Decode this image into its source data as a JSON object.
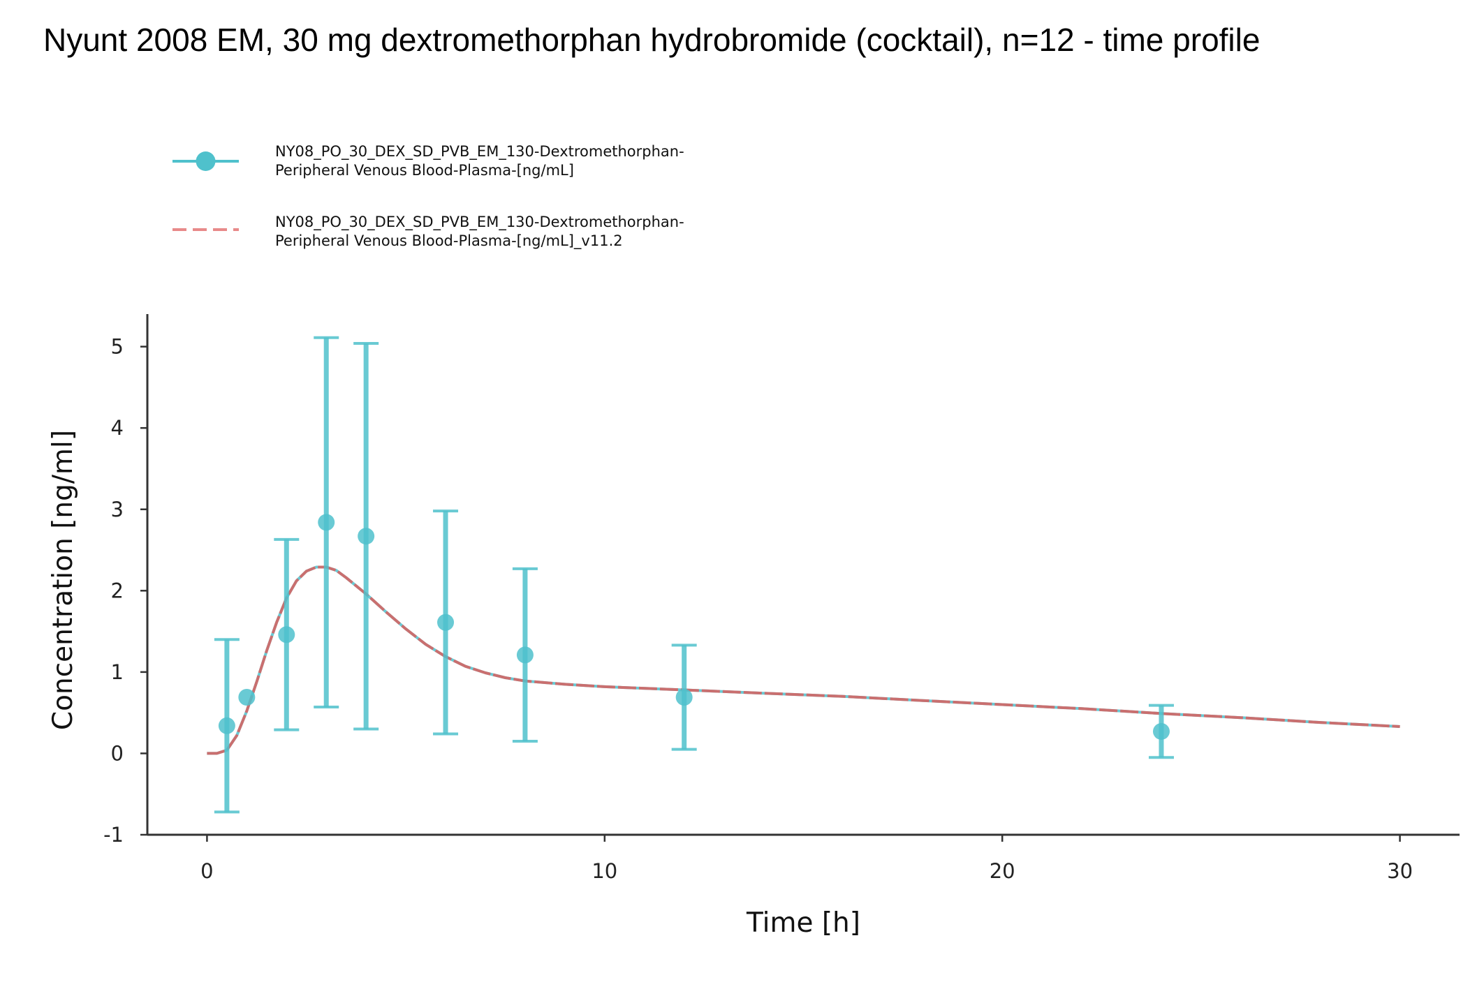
{
  "chart_data": {
    "type": "line",
    "title": "Nyunt 2008 EM, 30 mg dextromethorphan hydrobromide (cocktail), n=12 - time profile",
    "xlabel": "Time [h]",
    "ylabel": "Concentration [ng/ml]",
    "xlim": [
      -1.5,
      31.5
    ],
    "ylim": [
      -1,
      5.4
    ],
    "x_ticks": [
      0,
      10,
      20,
      30
    ],
    "x_tick_labels": [
      "0",
      "10",
      "20",
      "30"
    ],
    "y_ticks": [
      -1,
      0,
      1,
      2,
      3,
      4,
      5
    ],
    "y_tick_labels": [
      "-1",
      "0",
      "1",
      "2",
      "3",
      "4",
      "5"
    ],
    "grid": false,
    "legend_position": "top-left",
    "series": [
      {
        "name": "NY08_PO_30_DEX_SD_PVB_EM_130-Dextromethorphan-Peripheral Venous Blood-Plasma-[ng/mL]",
        "legend_lines": [
          "NY08_PO_30_DEX_SD_PVB_EM_130-Dextromethorphan-",
          "Peripheral Venous Blood-Plasma-[ng/mL]"
        ],
        "kind": "observed",
        "color": "#4fc1cc",
        "x": [
          0.5,
          1,
          2,
          3,
          4,
          6,
          8,
          12,
          24
        ],
        "y": [
          0.34,
          0.69,
          1.46,
          2.84,
          2.67,
          1.61,
          1.21,
          0.69,
          0.27
        ],
        "error": [
          1.06,
          0,
          1.17,
          2.27,
          2.37,
          1.37,
          1.06,
          0.64,
          0.32
        ]
      },
      {
        "name": "NY08_PO_30_DEX_SD_PVB_EM_130-Dextromethorphan-Peripheral Venous Blood-Plasma-[ng/mL]_v11.2",
        "legend_lines": [
          "NY08_PO_30_DEX_SD_PVB_EM_130-Dextromethorphan-",
          "Peripheral Venous Blood-Plasma-[ng/mL]_v11.2"
        ],
        "kind": "simulated",
        "color": "#e88a8a",
        "x": [
          0,
          0.25,
          0.5,
          0.75,
          1,
          1.25,
          1.5,
          1.75,
          2,
          2.25,
          2.5,
          2.75,
          3,
          3.25,
          3.5,
          3.75,
          4,
          4.5,
          5,
          5.5,
          6,
          6.5,
          7,
          7.5,
          8,
          9,
          10,
          12,
          14,
          16,
          18,
          20,
          22,
          24,
          26,
          28,
          30
        ],
        "y": [
          0,
          0,
          0.04,
          0.22,
          0.52,
          0.88,
          1.26,
          1.61,
          1.91,
          2.12,
          2.24,
          2.29,
          2.29,
          2.25,
          2.16,
          2.06,
          1.96,
          1.74,
          1.53,
          1.34,
          1.19,
          1.07,
          0.99,
          0.93,
          0.89,
          0.85,
          0.82,
          0.78,
          0.74,
          0.7,
          0.65,
          0.6,
          0.55,
          0.49,
          0.44,
          0.38,
          0.33
        ]
      }
    ]
  }
}
